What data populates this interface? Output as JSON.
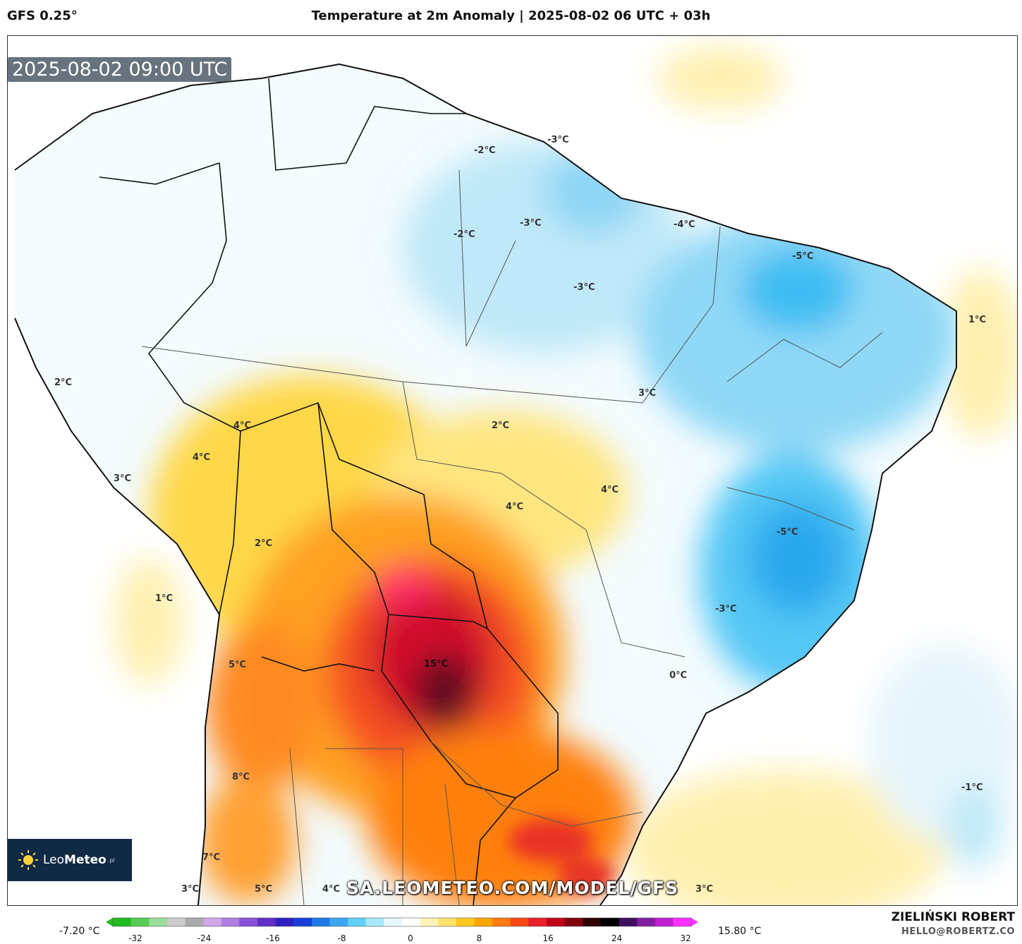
{
  "header": {
    "model": "GFS 0.25°",
    "title": "Temperature at 2m Anomaly | 2025-08-02 06 UTC + 03h"
  },
  "map": {
    "valid_time": "2025-08-02 09:00 UTC",
    "watermark": "SA.LEOMETEO.COM/MODEL/GFS",
    "logo": {
      "brand_light": "Leo",
      "brand_bold": "Meteo",
      "suffix": ".pl",
      "icon": "sun-icon"
    },
    "contour_labels": [
      "-2°C",
      "-3°C",
      "-2°C",
      "-3°C",
      "-3°C",
      "-4°C",
      "-5°C",
      "1°C",
      "2°C",
      "4°C",
      "3°C",
      "2°C",
      "3°C",
      "4°C",
      "4°C",
      "1°C",
      "2°C",
      "-5°C",
      "-3°C",
      "5°C",
      "15°C",
      "0°C",
      "8°C",
      "-1°C",
      "7°C",
      "3°C",
      "5°C",
      "4°C",
      "3°C",
      "4°C"
    ]
  },
  "colorbar": {
    "min_label": "-7.20 °C",
    "max_label": "15.80 °C",
    "ticks": [
      "-32",
      "-24",
      "-16",
      "-8",
      "0",
      "8",
      "16",
      "24",
      "32"
    ],
    "colors": [
      "#22bb22",
      "#55cc55",
      "#99dd99",
      "#cccccc",
      "#aaaaaa",
      "#cfa8e8",
      "#b07ee0",
      "#8a4fd8",
      "#6030c8",
      "#3020c0",
      "#1840d8",
      "#1e78e8",
      "#3aa8f0",
      "#60d0f8",
      "#a8e8fa",
      "#e8f7fd",
      "#ffffff",
      "#fff3b8",
      "#ffe36a",
      "#ffc820",
      "#ffa500",
      "#ff7a10",
      "#f84a10",
      "#e81e28",
      "#c00018",
      "#800010",
      "#300008",
      "#000000",
      "#401060",
      "#8020a0",
      "#c020d0",
      "#ff30ff"
    ]
  },
  "credit": {
    "author": "ZIELIŃSKI ROBERT",
    "email": "HELLO@ROBERTZ.CO"
  }
}
